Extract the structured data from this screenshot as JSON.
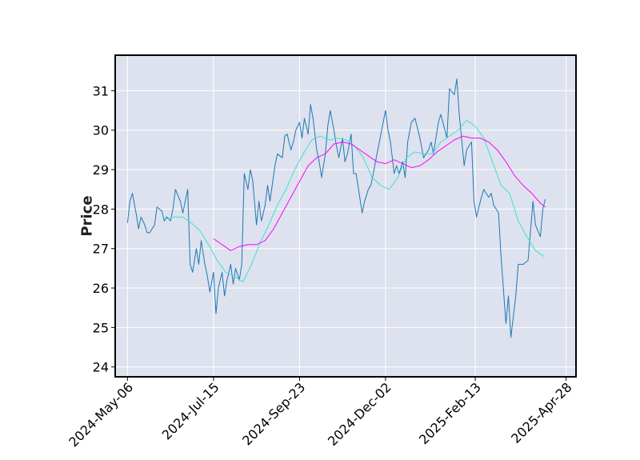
{
  "chart_data": {
    "type": "line",
    "title": "",
    "xlabel": "",
    "ylabel": "Price",
    "ylim": [
      23.75,
      31.9
    ],
    "xlim": [
      "2024-04-26",
      "2025-05-06"
    ],
    "grid": true,
    "legend": "none",
    "x_ticks": [
      "2024-May-06",
      "2024-Jul-15",
      "2024-Sep-23",
      "2024-Dec-02",
      "2025-Feb-13",
      "2025-Apr-28"
    ],
    "y_ticks": [
      24,
      25,
      26,
      27,
      28,
      29,
      30,
      31
    ],
    "colors": {
      "price": "#1f77b4",
      "ma_short": "#40e0d0",
      "ma_long": "#ff00ff",
      "plot_bg": "#dde2ee",
      "grid": "#ffffff"
    },
    "series": [
      {
        "role": "price",
        "points": [
          [
            "2024-05-06",
            27.65
          ],
          [
            "2024-05-08",
            28.2
          ],
          [
            "2024-05-10",
            28.4
          ],
          [
            "2024-05-13",
            27.9
          ],
          [
            "2024-05-15",
            27.5
          ],
          [
            "2024-05-17",
            27.8
          ],
          [
            "2024-05-20",
            27.6
          ],
          [
            "2024-05-22",
            27.4
          ],
          [
            "2024-05-24",
            27.4
          ],
          [
            "2024-05-28",
            27.6
          ],
          [
            "2024-05-30",
            28.05
          ],
          [
            "2024-06-03",
            27.95
          ],
          [
            "2024-06-05",
            27.7
          ],
          [
            "2024-06-07",
            27.8
          ],
          [
            "2024-06-10",
            27.7
          ],
          [
            "2024-06-12",
            28.0
          ],
          [
            "2024-06-14",
            28.5
          ],
          [
            "2024-06-18",
            28.2
          ],
          [
            "2024-06-20",
            27.9
          ],
          [
            "2024-06-24",
            28.5
          ],
          [
            "2024-06-26",
            26.6
          ],
          [
            "2024-06-28",
            26.4
          ],
          [
            "2024-07-01",
            27.0
          ],
          [
            "2024-07-03",
            26.6
          ],
          [
            "2024-07-05",
            27.2
          ],
          [
            "2024-07-08",
            26.6
          ],
          [
            "2024-07-10",
            26.3
          ],
          [
            "2024-07-12",
            25.9
          ],
          [
            "2024-07-15",
            26.4
          ],
          [
            "2024-07-17",
            25.35
          ],
          [
            "2024-07-19",
            26.0
          ],
          [
            "2024-07-22",
            26.4
          ],
          [
            "2024-07-24",
            25.8
          ],
          [
            "2024-07-26",
            26.2
          ],
          [
            "2024-07-29",
            26.6
          ],
          [
            "2024-07-31",
            26.1
          ],
          [
            "2024-08-02",
            26.5
          ],
          [
            "2024-08-05",
            26.2
          ],
          [
            "2024-08-07",
            26.6
          ],
          [
            "2024-08-09",
            28.9
          ],
          [
            "2024-08-12",
            28.5
          ],
          [
            "2024-08-14",
            29.0
          ],
          [
            "2024-08-16",
            28.7
          ],
          [
            "2024-08-19",
            27.6
          ],
          [
            "2024-08-21",
            28.2
          ],
          [
            "2024-08-23",
            27.7
          ],
          [
            "2024-08-26",
            28.1
          ],
          [
            "2024-08-28",
            28.6
          ],
          [
            "2024-08-30",
            28.2
          ],
          [
            "2024-09-03",
            29.1
          ],
          [
            "2024-09-05",
            29.4
          ],
          [
            "2024-09-09",
            29.3
          ],
          [
            "2024-09-11",
            29.85
          ],
          [
            "2024-09-13",
            29.9
          ],
          [
            "2024-09-16",
            29.5
          ],
          [
            "2024-09-18",
            29.7
          ],
          [
            "2024-09-20",
            30.0
          ],
          [
            "2024-09-23",
            30.2
          ],
          [
            "2024-09-25",
            29.8
          ],
          [
            "2024-09-27",
            30.3
          ],
          [
            "2024-09-30",
            29.9
          ],
          [
            "2024-10-02",
            30.65
          ],
          [
            "2024-10-04",
            30.3
          ],
          [
            "2024-10-07",
            29.5
          ],
          [
            "2024-10-09",
            29.2
          ],
          [
            "2024-10-11",
            28.8
          ],
          [
            "2024-10-14",
            29.4
          ],
          [
            "2024-10-16",
            30.1
          ],
          [
            "2024-10-18",
            30.5
          ],
          [
            "2024-10-21",
            30.0
          ],
          [
            "2024-10-23",
            29.6
          ],
          [
            "2024-10-25",
            29.3
          ],
          [
            "2024-10-28",
            29.8
          ],
          [
            "2024-10-30",
            29.2
          ],
          [
            "2024-11-01",
            29.4
          ],
          [
            "2024-11-04",
            29.9
          ],
          [
            "2024-11-06",
            28.9
          ],
          [
            "2024-11-08",
            28.9
          ],
          [
            "2024-11-11",
            28.3
          ],
          [
            "2024-11-13",
            27.9
          ],
          [
            "2024-11-15",
            28.2
          ],
          [
            "2024-11-18",
            28.5
          ],
          [
            "2024-11-20",
            28.6
          ],
          [
            "2024-11-22",
            28.9
          ],
          [
            "2024-11-25",
            29.4
          ],
          [
            "2024-11-27",
            29.7
          ],
          [
            "2024-12-02",
            30.5
          ],
          [
            "2024-12-04",
            30.0
          ],
          [
            "2024-12-06",
            29.7
          ],
          [
            "2024-12-09",
            28.9
          ],
          [
            "2024-12-11",
            29.1
          ],
          [
            "2024-12-13",
            28.9
          ],
          [
            "2024-12-16",
            29.2
          ],
          [
            "2024-12-18",
            28.8
          ],
          [
            "2024-12-20",
            29.7
          ],
          [
            "2024-12-23",
            30.2
          ],
          [
            "2024-12-26",
            30.3
          ],
          [
            "2024-12-30",
            29.8
          ],
          [
            "2025-01-02",
            29.3
          ],
          [
            "2025-01-06",
            29.5
          ],
          [
            "2025-01-08",
            29.7
          ],
          [
            "2025-01-10",
            29.4
          ],
          [
            "2025-01-14",
            30.2
          ],
          [
            "2025-01-16",
            30.4
          ],
          [
            "2025-01-21",
            29.8
          ],
          [
            "2025-01-23",
            31.05
          ],
          [
            "2025-01-27",
            30.9
          ],
          [
            "2025-01-29",
            31.3
          ],
          [
            "2025-01-31",
            30.4
          ],
          [
            "2025-02-04",
            29.1
          ],
          [
            "2025-02-06",
            29.5
          ],
          [
            "2025-02-10",
            29.7
          ],
          [
            "2025-02-12",
            28.2
          ],
          [
            "2025-02-14",
            27.8
          ],
          [
            "2025-02-18",
            28.3
          ],
          [
            "2025-02-20",
            28.5
          ],
          [
            "2025-02-24",
            28.3
          ],
          [
            "2025-02-26",
            28.4
          ],
          [
            "2025-02-28",
            28.1
          ],
          [
            "2025-03-04",
            27.9
          ],
          [
            "2025-03-06",
            26.8
          ],
          [
            "2025-03-10",
            25.1
          ],
          [
            "2025-03-12",
            25.8
          ],
          [
            "2025-03-14",
            24.75
          ],
          [
            "2025-03-18",
            25.8
          ],
          [
            "2025-03-20",
            26.6
          ],
          [
            "2025-03-24",
            26.6
          ],
          [
            "2025-03-28",
            26.7
          ],
          [
            "2025-04-01",
            28.2
          ],
          [
            "2025-04-03",
            27.6
          ],
          [
            "2025-04-07",
            27.3
          ],
          [
            "2025-04-09",
            28.0
          ],
          [
            "2025-04-11",
            28.25
          ]
        ]
      },
      {
        "role": "ma_short",
        "points": [
          [
            "2024-06-06",
            27.75
          ],
          [
            "2024-06-13",
            27.8
          ],
          [
            "2024-06-20",
            27.8
          ],
          [
            "2024-06-27",
            27.65
          ],
          [
            "2024-07-04",
            27.45
          ],
          [
            "2024-07-11",
            27.1
          ],
          [
            "2024-07-18",
            26.7
          ],
          [
            "2024-07-25",
            26.4
          ],
          [
            "2024-08-01",
            26.3
          ],
          [
            "2024-08-08",
            26.15
          ],
          [
            "2024-08-15",
            26.6
          ],
          [
            "2024-08-22",
            27.15
          ],
          [
            "2024-08-29",
            27.6
          ],
          [
            "2024-09-05",
            28.1
          ],
          [
            "2024-09-12",
            28.5
          ],
          [
            "2024-09-19",
            29.0
          ],
          [
            "2024-09-26",
            29.4
          ],
          [
            "2024-10-03",
            29.75
          ],
          [
            "2024-10-10",
            29.85
          ],
          [
            "2024-10-17",
            29.75
          ],
          [
            "2024-10-24",
            29.8
          ],
          [
            "2024-10-31",
            29.75
          ],
          [
            "2024-11-07",
            29.6
          ],
          [
            "2024-11-14",
            29.3
          ],
          [
            "2024-11-21",
            28.8
          ],
          [
            "2024-11-28",
            28.6
          ],
          [
            "2024-12-05",
            28.5
          ],
          [
            "2024-12-12",
            28.8
          ],
          [
            "2024-12-19",
            29.3
          ],
          [
            "2024-12-26",
            29.45
          ],
          [
            "2025-01-02",
            29.4
          ],
          [
            "2025-01-09",
            29.4
          ],
          [
            "2025-01-16",
            29.7
          ],
          [
            "2025-01-23",
            29.85
          ],
          [
            "2025-01-30",
            30.0
          ],
          [
            "2025-02-06",
            30.25
          ],
          [
            "2025-02-13",
            30.1
          ],
          [
            "2025-02-20",
            29.8
          ],
          [
            "2025-02-27",
            29.2
          ],
          [
            "2025-03-06",
            28.6
          ],
          [
            "2025-03-13",
            28.4
          ],
          [
            "2025-03-20",
            27.7
          ],
          [
            "2025-03-27",
            27.3
          ],
          [
            "2025-04-03",
            26.95
          ],
          [
            "2025-04-10",
            26.8
          ]
        ]
      },
      {
        "role": "ma_long",
        "points": [
          [
            "2024-07-15",
            27.25
          ],
          [
            "2024-07-22",
            27.1
          ],
          [
            "2024-07-29",
            26.95
          ],
          [
            "2024-08-05",
            27.05
          ],
          [
            "2024-08-12",
            27.1
          ],
          [
            "2024-08-19",
            27.1
          ],
          [
            "2024-08-26",
            27.2
          ],
          [
            "2024-09-02",
            27.5
          ],
          [
            "2024-09-09",
            27.9
          ],
          [
            "2024-09-16",
            28.3
          ],
          [
            "2024-09-23",
            28.7
          ],
          [
            "2024-09-30",
            29.1
          ],
          [
            "2024-10-07",
            29.3
          ],
          [
            "2024-10-14",
            29.4
          ],
          [
            "2024-10-21",
            29.65
          ],
          [
            "2024-10-28",
            29.7
          ],
          [
            "2024-11-04",
            29.65
          ],
          [
            "2024-11-11",
            29.5
          ],
          [
            "2024-11-18",
            29.35
          ],
          [
            "2024-11-25",
            29.2
          ],
          [
            "2024-12-02",
            29.15
          ],
          [
            "2024-12-09",
            29.25
          ],
          [
            "2024-12-16",
            29.15
          ],
          [
            "2024-12-23",
            29.05
          ],
          [
            "2024-12-30",
            29.1
          ],
          [
            "2025-01-06",
            29.25
          ],
          [
            "2025-01-13",
            29.45
          ],
          [
            "2025-01-20",
            29.6
          ],
          [
            "2025-01-27",
            29.75
          ],
          [
            "2025-02-03",
            29.85
          ],
          [
            "2025-02-10",
            29.8
          ],
          [
            "2025-02-17",
            29.8
          ],
          [
            "2025-02-24",
            29.7
          ],
          [
            "2025-03-03",
            29.5
          ],
          [
            "2025-03-10",
            29.2
          ],
          [
            "2025-03-17",
            28.85
          ],
          [
            "2025-03-24",
            28.6
          ],
          [
            "2025-03-31",
            28.4
          ],
          [
            "2025-04-07",
            28.15
          ],
          [
            "2025-04-11",
            28.05
          ]
        ]
      }
    ]
  }
}
